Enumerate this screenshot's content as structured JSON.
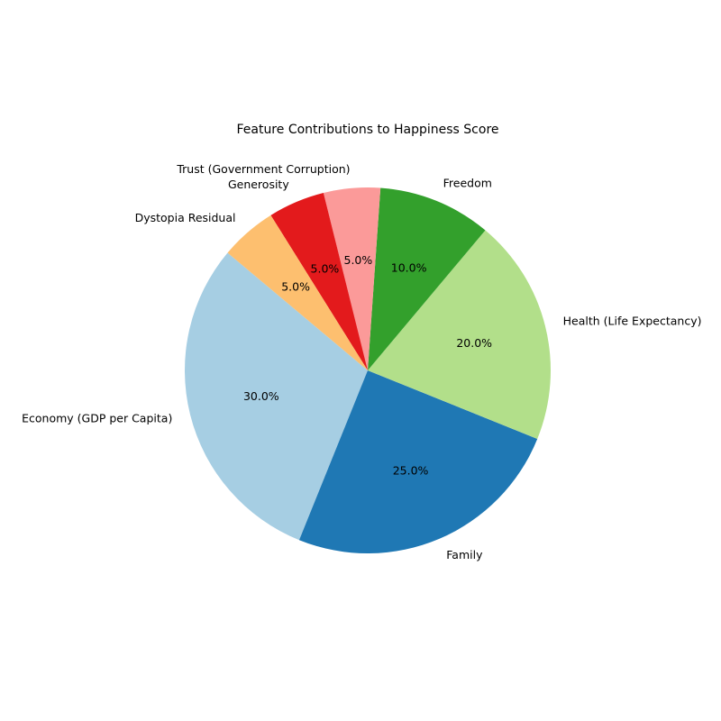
{
  "chart_data": {
    "type": "pie",
    "title": "Feature Contributions to Happiness Score",
    "categories": [
      "Economy (GDP per Capita)",
      "Family",
      "Health (Life Expectancy)",
      "Freedom",
      "Trust (Government Corruption)",
      "Generosity",
      "Dystopia Residual"
    ],
    "values": [
      30,
      25,
      20,
      10,
      5,
      5,
      5
    ],
    "percent_labels": [
      "30.0%",
      "25.0%",
      "20.0%",
      "10.0%",
      "5.0%",
      "5.0%",
      "5.0%"
    ],
    "colors": [
      "#a6cee3",
      "#1f78b4",
      "#b2df8a",
      "#33a02c",
      "#fb9a99",
      "#e31a1c",
      "#fdbf6f"
    ],
    "start_angle_deg": 140,
    "direction": "counterclockwise",
    "legend": "none"
  }
}
